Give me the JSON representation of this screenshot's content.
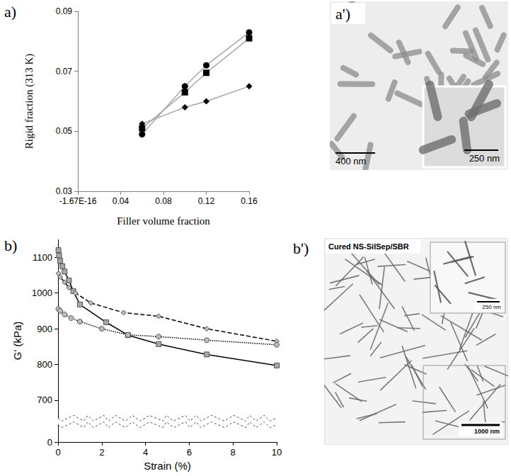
{
  "chart_data": [
    {
      "type": "line",
      "annotations": [
        "a)"
      ],
      "x_label": "Filler volume fraction",
      "y_label": "Rigid fraction (313 K)",
      "xlim": [
        -1.67e-16,
        0.16
      ],
      "xticks": [
        {
          "value": -1.67e-16,
          "label": "-1.67E-16"
        },
        0.04,
        0.08,
        0.12,
        0.16
      ],
      "ylim": [
        0.03,
        0.09
      ],
      "yticks": [
        0.03,
        0.05,
        0.07,
        0.09
      ],
      "grid": false,
      "series": [
        {
          "marker": "circle",
          "color": "#000000",
          "line_style": "solid",
          "x": [
            0.06,
            0.1,
            0.12,
            0.16
          ],
          "values": [
            0.049,
            0.065,
            0.072,
            0.083
          ]
        },
        {
          "marker": "square",
          "color": "#000000",
          "line_style": "solid",
          "x": [
            0.06,
            0.1,
            0.12,
            0.16
          ],
          "values": [
            0.051,
            0.063,
            0.0695,
            0.081
          ]
        },
        {
          "marker": "diamond",
          "color": "#000000",
          "line_style": "solid",
          "x": [
            0.06,
            0.1,
            0.12,
            0.16
          ],
          "values": [
            0.0525,
            0.058,
            0.06,
            0.065
          ]
        }
      ]
    },
    {
      "type": "line",
      "annotations": [
        "b)"
      ],
      "x_label": "Strain (%)",
      "y_label": "G' (kPa)",
      "xlim": [
        0,
        10
      ],
      "xticks": [
        0,
        2,
        4,
        6,
        8,
        10
      ],
      "ylim": [
        0,
        1150
      ],
      "yticks": [
        0,
        700,
        800,
        900,
        1000,
        1100
      ],
      "y_break": [
        50,
        650
      ],
      "grid": false,
      "series": [
        {
          "marker": "square",
          "color": "#a6a6a6",
          "line_style": "solid",
          "x": [
            0.02,
            0.05,
            0.1,
            0.2,
            0.3,
            0.5,
            0.7,
            1,
            2.2,
            3.2,
            4.6,
            6.8,
            10
          ],
          "values": [
            1120,
            1105,
            1090,
            1075,
            1060,
            1035,
            1005,
            968,
            918,
            882,
            857,
            828,
            797
          ]
        },
        {
          "marker": "diamond",
          "color": "#bdbdbd",
          "line_style": "dashed",
          "x": [
            0.02,
            0.1,
            0.3,
            0.5,
            0.8,
            1.5,
            3,
            4.6,
            6.8,
            10
          ],
          "values": [
            1055,
            1045,
            1030,
            1015,
            1000,
            972,
            945,
            935,
            900,
            865
          ]
        },
        {
          "marker": "circle",
          "color": "#bdbdbd",
          "line_style": "dotted",
          "x": [
            0.02,
            0.1,
            0.3,
            0.6,
            1,
            2,
            3.2,
            4.6,
            6.8,
            10
          ],
          "values": [
            955,
            950,
            940,
            930,
            920,
            900,
            883,
            878,
            868,
            855
          ]
        }
      ]
    }
  ],
  "micrographs": [
    {
      "label": "a')",
      "scale_bars": [
        "400 nm",
        "250 nm"
      ]
    },
    {
      "label": "b')",
      "title": "Cured NS-SilSep/SBR",
      "scale_bars": [
        "250 nm",
        "1000 nm"
      ]
    }
  ]
}
